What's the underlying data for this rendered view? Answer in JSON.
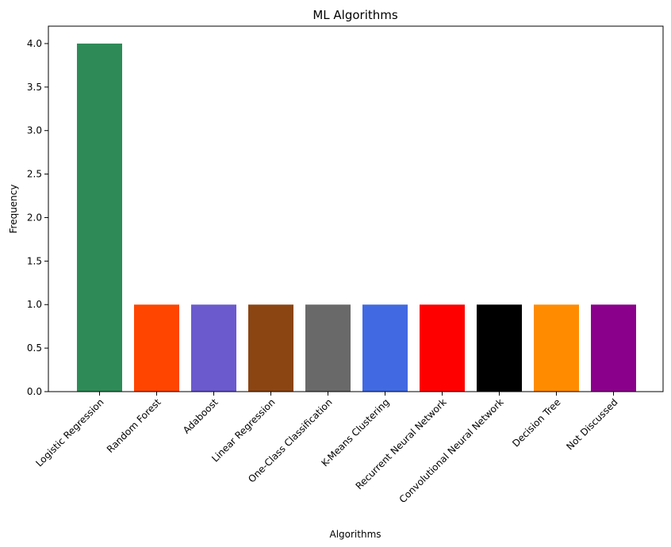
{
  "chart_data": {
    "type": "bar",
    "title": "ML Algorithms",
    "xlabel": "Algorithms",
    "ylabel": "Frequency",
    "categories": [
      "Logistic Regression",
      "Random Forest",
      "Adaboost",
      "Linear Regression",
      "One-Class Classification",
      "K-Means Clustering",
      "Recurrent Neural Network",
      "Convolutional Neural Network",
      "Decision Tree",
      "Not Discussed"
    ],
    "values": [
      4,
      1,
      1,
      1,
      1,
      1,
      1,
      1,
      1,
      1
    ],
    "colors": [
      "#2e8b57",
      "#ff4500",
      "#6a5acd",
      "#8b4513",
      "#696969",
      "#4169e1",
      "#ff0000",
      "#000000",
      "#ff8c00",
      "#8b008b"
    ],
    "ylim": [
      0,
      4.2
    ],
    "yticks": [
      "0.0",
      "0.5",
      "1.0",
      "1.5",
      "2.0",
      "2.5",
      "3.0",
      "3.5",
      "4.0"
    ],
    "grid": false,
    "legend": "none"
  }
}
